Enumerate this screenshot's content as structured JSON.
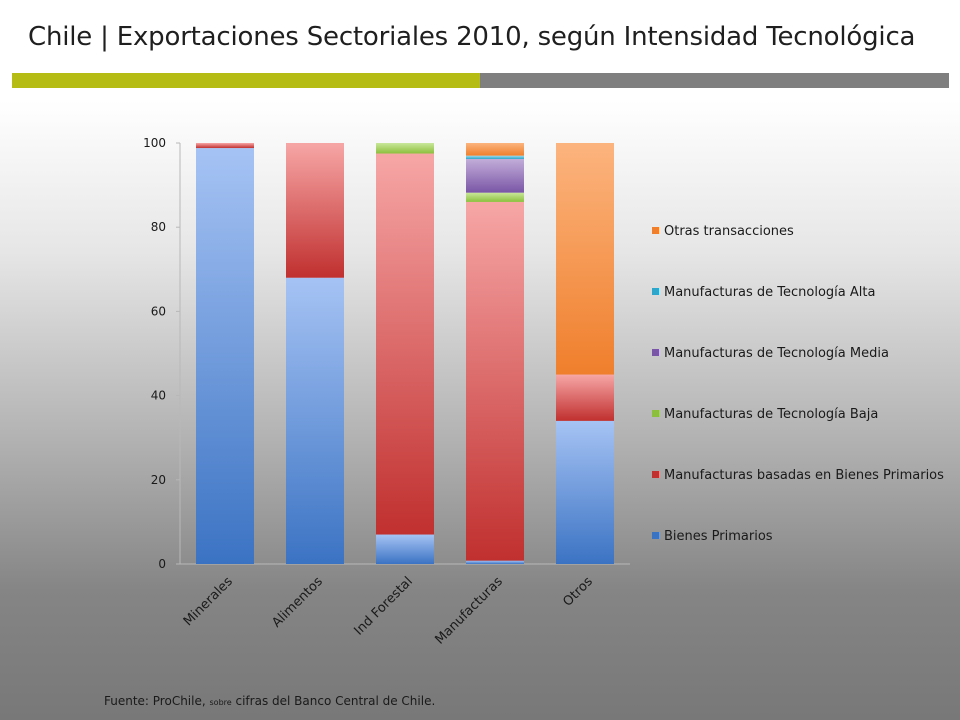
{
  "title": "Chile | Exportaciones  Sectoriales 2010, según Intensidad Tecnológica",
  "colors": {
    "rule_green": "#b5bd14",
    "rule_gray": "#7f7f7f"
  },
  "source": {
    "part1": "Fuente: ProChile, ",
    "part2": "sobre",
    "part3": " cifras del Banco Central de Chile."
  },
  "chart_data": {
    "type": "bar",
    "stacked": true,
    "title": "",
    "xlabel": "",
    "ylabel": "",
    "ylim": [
      0,
      100
    ],
    "yticks": [
      0,
      20,
      40,
      60,
      80,
      100
    ],
    "grid": false,
    "legend_position": "right",
    "categories": [
      "Minerales",
      "Alimentos",
      "Ind Forestal",
      "Manufacturas",
      "Otros"
    ],
    "series": [
      {
        "name": "Bienes Primarios",
        "color_light": "#a6c3f4",
        "color_dark": "#3b73c3",
        "values": [
          98.8,
          68,
          7,
          0.8,
          34
        ]
      },
      {
        "name": "Manufacturas basadas en Bienes Primarios",
        "color_light": "#f7a6a6",
        "color_dark": "#c0302f",
        "values": [
          1.2,
          32,
          90.5,
          85.2,
          11
        ]
      },
      {
        "name": "Manufacturas de Tecnología Baja",
        "color_light": "#c9e79a",
        "color_dark": "#8cbf3d",
        "values": [
          0,
          0,
          2.5,
          2.2,
          0
        ]
      },
      {
        "name": "Manufacturas de Tecnología Media",
        "color_light": "#c2add9",
        "color_dark": "#7a56a6",
        "values": [
          0,
          0,
          0,
          8,
          0
        ]
      },
      {
        "name": "Manufacturas de Tecnología Alta",
        "color_light": "#9fdcee",
        "color_dark": "#2ea6cc",
        "values": [
          0,
          0,
          0,
          0.8,
          0
        ]
      },
      {
        "name": "Otras transacciones",
        "color_light": "#fcb47e",
        "color_dark": "#ef7f2c",
        "values": [
          0,
          0,
          0,
          3,
          55
        ]
      }
    ]
  }
}
